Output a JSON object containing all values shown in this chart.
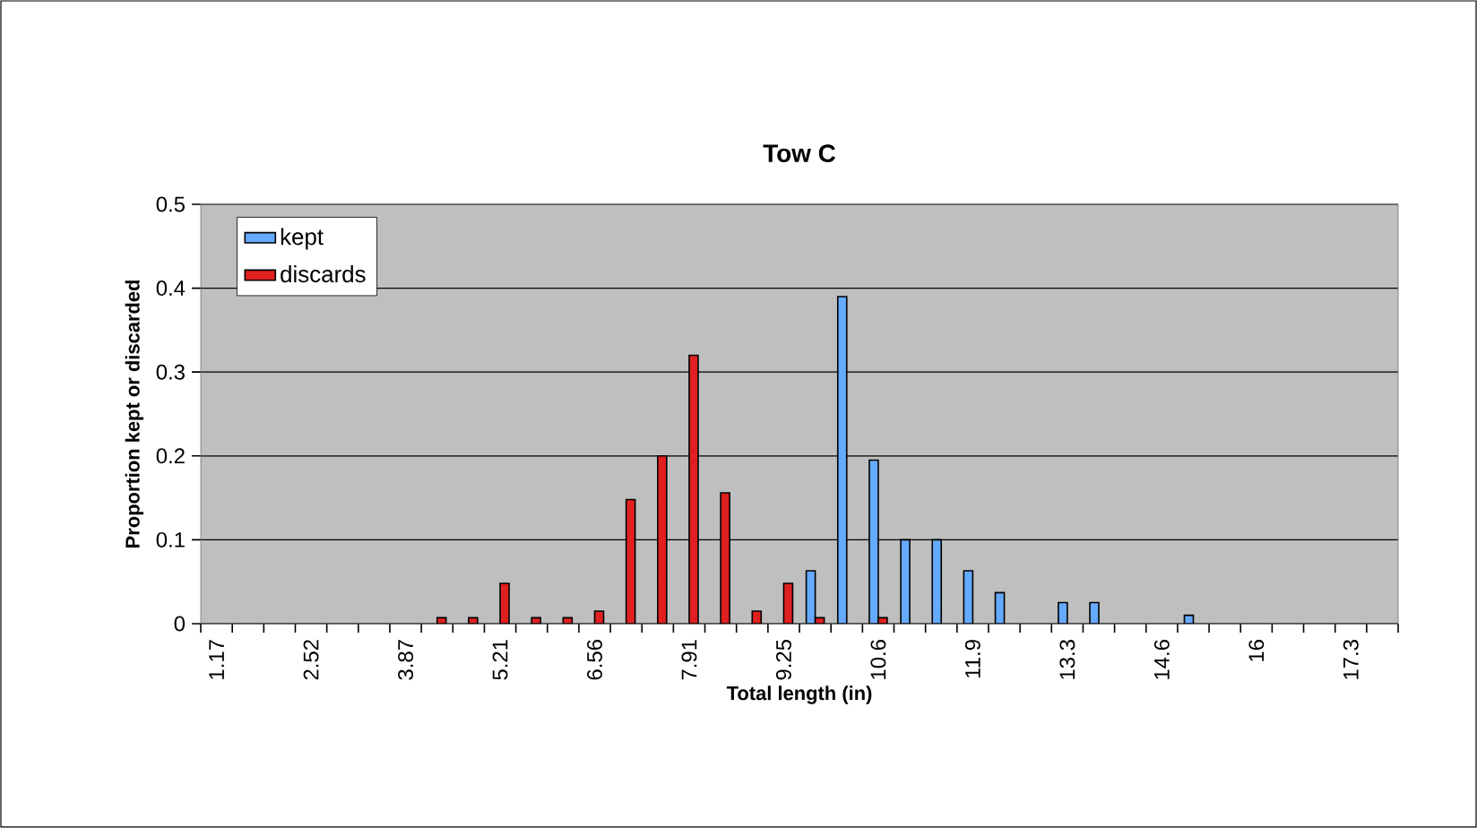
{
  "chart_data": {
    "type": "bar",
    "title": "Tow C",
    "xlabel": "Total length (in)",
    "ylabel": "Proportion kept or discarded",
    "categories": [
      "1.17",
      null,
      null,
      "2.52",
      null,
      null,
      "3.87",
      null,
      null,
      "5.21",
      null,
      null,
      "6.56",
      null,
      null,
      "7.91",
      null,
      null,
      "9.25",
      null,
      null,
      "10.6",
      null,
      null,
      "11.9",
      null,
      null,
      "13.3",
      null,
      null,
      "14.6",
      null,
      null,
      "16",
      null,
      null,
      "17.3",
      null
    ],
    "series": [
      {
        "name": "kept",
        "color": "#66aaff",
        "values": [
          0,
          0,
          0,
          0,
          0,
          0,
          0,
          0,
          0,
          0,
          0,
          0,
          0,
          0,
          0,
          0,
          0,
          0,
          0,
          0.063,
          0.39,
          0.195,
          0.1,
          0.1,
          0.063,
          0.037,
          0,
          0.025,
          0.025,
          0,
          0,
          0.01,
          0,
          0,
          0,
          0,
          0,
          0
        ]
      },
      {
        "name": "discards",
        "color": "#e02020",
        "values": [
          0,
          0,
          0,
          0,
          0,
          0,
          0,
          0.007,
          0.007,
          0.048,
          0.007,
          0.007,
          0.015,
          0.148,
          0.2,
          0.32,
          0.156,
          0.015,
          0.048,
          0.007,
          0,
          0.007,
          0,
          0,
          0,
          0,
          0,
          0,
          0,
          0,
          0,
          0,
          0,
          0,
          0,
          0,
          0,
          0
        ]
      }
    ],
    "ylim": [
      0,
      0.5
    ],
    "yticks": [
      0,
      0.1,
      0.2,
      0.3,
      0.4,
      0.5
    ],
    "grid": "y",
    "legend": "top left"
  }
}
